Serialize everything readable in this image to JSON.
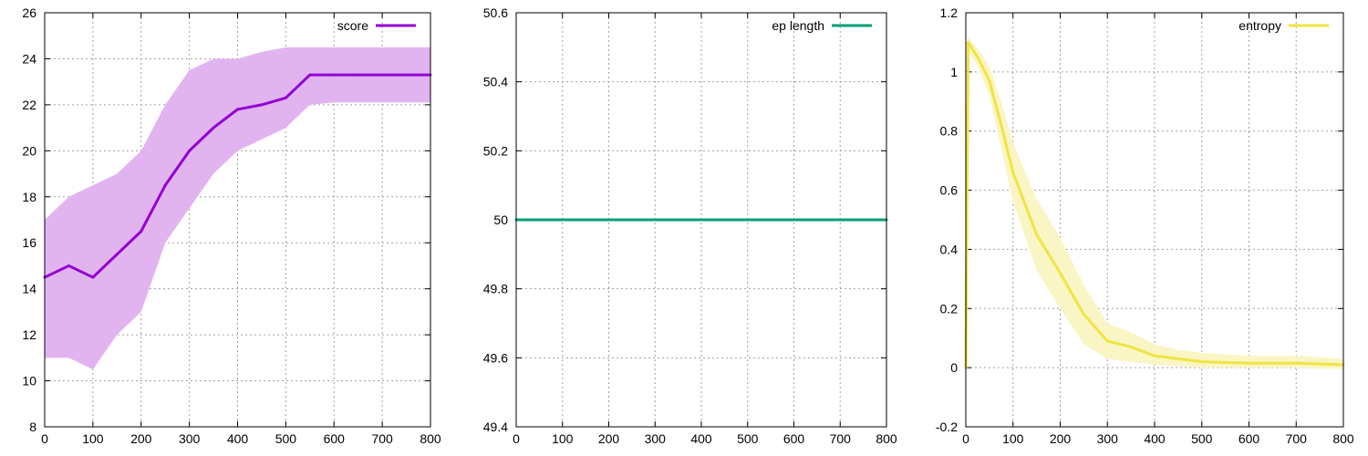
{
  "chart_data": [
    {
      "type": "line",
      "xlim": [
        0,
        800
      ],
      "ylim": [
        8,
        26
      ],
      "x_ticks": [
        "0",
        "100",
        "200",
        "300",
        "400",
        "500",
        "600",
        "700",
        "800"
      ],
      "y_ticks": [
        "8",
        "10",
        "12",
        "14",
        "16",
        "18",
        "20",
        "22",
        "24",
        "26"
      ],
      "legend": "top-right",
      "grid": true,
      "colors": {
        "line": "#9400d3",
        "band": "#e1b4f0"
      },
      "series": [
        {
          "name": "score",
          "x": [
            0,
            50,
            100,
            150,
            200,
            250,
            300,
            350,
            400,
            450,
            500,
            550,
            600,
            650,
            700,
            750,
            800
          ],
          "mean": [
            14.5,
            15.0,
            14.5,
            15.5,
            16.5,
            18.5,
            20.0,
            21.0,
            21.8,
            22.0,
            22.3,
            23.3,
            23.3,
            23.3,
            23.3,
            23.3,
            23.3
          ],
          "lower": [
            11.0,
            11.0,
            10.5,
            12.0,
            13.0,
            16.0,
            17.5,
            19.0,
            20.0,
            20.5,
            21.0,
            22.0,
            22.1,
            22.1,
            22.1,
            22.1,
            22.1
          ],
          "upper": [
            17.0,
            18.0,
            18.5,
            19.0,
            20.0,
            22.0,
            23.5,
            24.0,
            24.0,
            24.3,
            24.5,
            24.5,
            24.5,
            24.5,
            24.5,
            24.5,
            24.5
          ]
        }
      ]
    },
    {
      "type": "line",
      "xlim": [
        0,
        800
      ],
      "ylim": [
        49.4,
        50.6
      ],
      "x_ticks": [
        "0",
        "100",
        "200",
        "300",
        "400",
        "500",
        "600",
        "700",
        "800"
      ],
      "y_ticks": [
        "49.4",
        "49.6",
        "49.8",
        "50",
        "50.2",
        "50.4",
        "50.6"
      ],
      "legend": "top-right",
      "grid": true,
      "colors": {
        "line": "#009e73"
      },
      "series": [
        {
          "name": "ep length",
          "x": [
            0,
            800
          ],
          "mean": [
            50,
            50
          ]
        }
      ]
    },
    {
      "type": "line",
      "xlim": [
        0,
        800
      ],
      "ylim": [
        -0.2,
        1.2
      ],
      "x_ticks": [
        "0",
        "100",
        "200",
        "300",
        "400",
        "500",
        "600",
        "700",
        "800"
      ],
      "y_ticks": [
        "-0.2",
        "0",
        "0.2",
        "0.4",
        "0.6",
        "0.8",
        "1",
        "1.2"
      ],
      "legend": "top-right",
      "grid": true,
      "colors": {
        "line": "#f0e442",
        "band": "#faf5c4"
      },
      "series": [
        {
          "name": "entropy",
          "x": [
            0,
            5,
            25,
            50,
            75,
            100,
            150,
            200,
            250,
            300,
            350,
            400,
            450,
            500,
            600,
            700,
            800
          ],
          "mean": [
            0.0,
            1.1,
            1.05,
            0.97,
            0.82,
            0.66,
            0.45,
            0.32,
            0.18,
            0.09,
            0.07,
            0.04,
            0.03,
            0.02,
            0.015,
            0.015,
            0.01
          ],
          "lower": [
            0.0,
            1.07,
            1.02,
            0.92,
            0.74,
            0.56,
            0.33,
            0.2,
            0.08,
            0.03,
            0.02,
            0.01,
            0.005,
            0.0,
            0.0,
            0.0,
            -0.005
          ],
          "upper": [
            0.0,
            1.12,
            1.08,
            1.02,
            0.9,
            0.76,
            0.57,
            0.44,
            0.28,
            0.15,
            0.12,
            0.08,
            0.06,
            0.05,
            0.04,
            0.04,
            0.03
          ]
        }
      ]
    }
  ]
}
